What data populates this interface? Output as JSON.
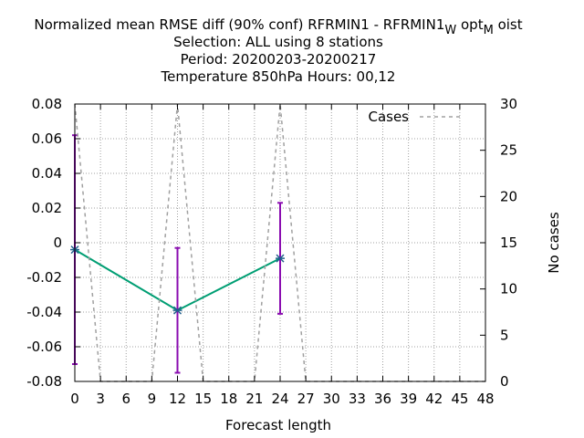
{
  "chart_data": {
    "type": "line",
    "title_lines": [
      "Normalized mean RMSE diff (90% conf) RFRMIN1 - RFRMIN1_W opt_M oist",
      "Selection: ALL using     8 stations",
      "Period: 20200203-20200217",
      "Temperature 850hPa   Hours:  00,12"
    ],
    "xlabel": "Forecast length",
    "ylabel_left": "",
    "ylabel_right": "No cases",
    "x_ticks": [
      "0",
      "3",
      "6",
      "9",
      "12",
      "15",
      "18",
      "21",
      "24",
      "27",
      "30",
      "33",
      "36",
      "39",
      "42",
      "45",
      "48"
    ],
    "xlim": [
      0,
      48
    ],
    "y_ticks": [
      "0.08",
      "0.06",
      "0.04",
      "0.02",
      "0",
      "-0.02",
      "-0.04",
      "-0.06",
      "-0.08"
    ],
    "ylim": [
      -0.08,
      0.08
    ],
    "y2_ticks": [
      "30",
      "25",
      "20",
      "15",
      "10",
      "5",
      "0"
    ],
    "y2lim": [
      0,
      30
    ],
    "grid": true,
    "legend_position": "top-right",
    "series": [
      {
        "name": "",
        "axis": "left",
        "style": "line-points-errorbars",
        "color": "#009e73",
        "errorbar_color": "#8a0cb0",
        "points": [
          {
            "x": 0,
            "y": -0.004,
            "low": -0.07,
            "high": 0.062
          },
          {
            "x": 12,
            "y": -0.039,
            "low": -0.075,
            "high": -0.003
          },
          {
            "x": 24,
            "y": -0.009,
            "low": -0.041,
            "high": 0.023
          }
        ]
      },
      {
        "name": "Cases",
        "axis": "right",
        "style": "dashed",
        "color": "#a0a0a0",
        "points": [
          {
            "x": 0,
            "y": 30
          },
          {
            "x": 3,
            "y": 0
          },
          {
            "x": 9,
            "y": 0
          },
          {
            "x": 12,
            "y": 30
          },
          {
            "x": 15,
            "y": 0
          },
          {
            "x": 21,
            "y": 0
          },
          {
            "x": 24,
            "y": 30
          },
          {
            "x": 27,
            "y": 0
          },
          {
            "x": 48,
            "y": 0
          }
        ]
      }
    ]
  }
}
